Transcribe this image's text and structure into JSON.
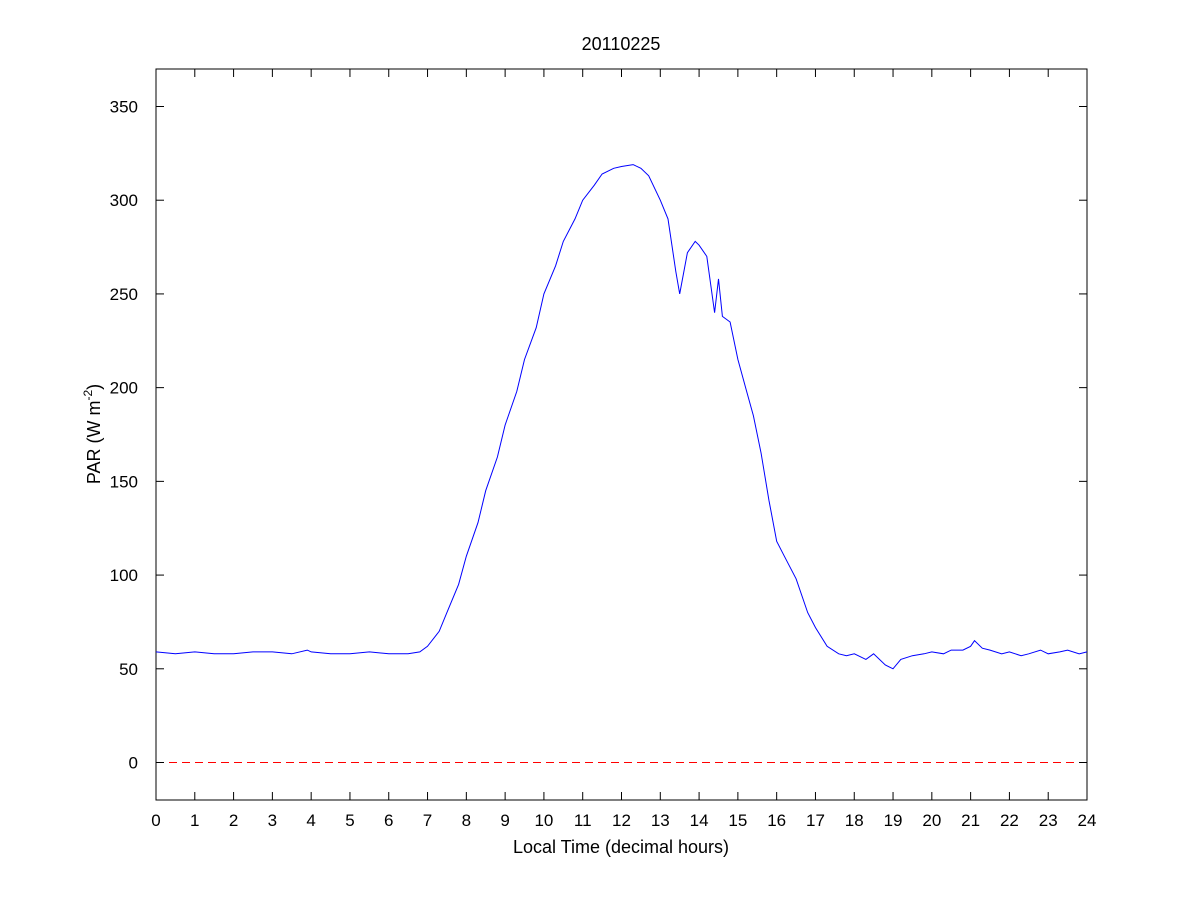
{
  "chart_data": {
    "type": "line",
    "title": "20110225",
    "xlabel": "Local Time (decimal hours)",
    "ylabel": "PAR (W m",
    "ylabel_superscript": "-2",
    "ylabel_close": ")",
    "xlim": [
      0,
      24
    ],
    "ylim": [
      -20,
      370
    ],
    "xticks": [
      "0",
      "1",
      "2",
      "3",
      "4",
      "5",
      "6",
      "7",
      "8",
      "9",
      "10",
      "11",
      "12",
      "13",
      "14",
      "15",
      "16",
      "17",
      "18",
      "19",
      "20",
      "21",
      "22",
      "23",
      "24"
    ],
    "yticks": [
      "0",
      "50",
      "100",
      "150",
      "200",
      "250",
      "300",
      "350"
    ],
    "grid": false,
    "series": [
      {
        "color": "#0000ff",
        "x": [
          0,
          0.5,
          1,
          1.5,
          2,
          2.5,
          3,
          3.5,
          3.9,
          4,
          4.5,
          5,
          5.5,
          6,
          6.5,
          6.8,
          7,
          7.3,
          7.5,
          7.8,
          8,
          8.3,
          8.5,
          8.8,
          9,
          9.3,
          9.5,
          9.8,
          10,
          10.3,
          10.5,
          10.8,
          11,
          11.3,
          11.5,
          11.8,
          12,
          12.3,
          12.5,
          12.7,
          13,
          13.2,
          13.4,
          13.5,
          13.7,
          13.9,
          14,
          14.2,
          14.3,
          14.4,
          14.5,
          14.6,
          14.8,
          15,
          15.2,
          15.4,
          15.6,
          15.8,
          16,
          16.2,
          16.5,
          16.8,
          17,
          17.3,
          17.6,
          17.8,
          18,
          18.3,
          18.5,
          18.8,
          19,
          19.2,
          19.5,
          19.8,
          20,
          20.3,
          20.5,
          20.8,
          21,
          21.1,
          21.3,
          21.5,
          21.8,
          22,
          22.3,
          22.5,
          22.8,
          23,
          23.3,
          23.5,
          23.8,
          24
        ],
        "y": [
          59,
          58,
          59,
          58,
          58,
          59,
          59,
          58,
          60,
          59,
          58,
          58,
          59,
          58,
          58,
          59,
          62,
          70,
          80,
          95,
          110,
          128,
          145,
          163,
          180,
          198,
          215,
          232,
          250,
          265,
          278,
          290,
          300,
          308,
          314,
          317,
          318,
          319,
          317,
          313,
          300,
          290,
          262,
          250,
          272,
          278,
          276,
          270,
          255,
          240,
          258,
          238,
          235,
          215,
          200,
          185,
          165,
          140,
          118,
          110,
          98,
          80,
          72,
          62,
          58,
          57,
          58,
          55,
          58,
          52,
          50,
          55,
          57,
          58,
          59,
          58,
          60,
          60,
          62,
          65,
          61,
          60,
          58,
          59,
          57,
          58,
          60,
          58,
          59,
          60,
          58,
          59
        ]
      },
      {
        "color": "#ff0000",
        "dash": "8,5",
        "x": [
          0,
          24
        ],
        "y": [
          0,
          0
        ]
      }
    ]
  }
}
